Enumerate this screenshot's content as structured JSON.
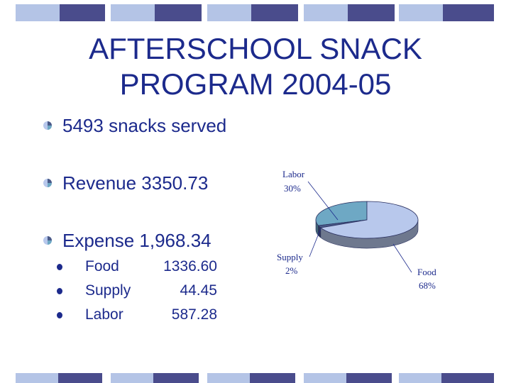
{
  "slide": {
    "title_line1": "AFTERSCHOOL SNACK",
    "title_line2": "PROGRAM 2004-05"
  },
  "bullets": [
    {
      "text": "5493 snacks served"
    },
    {
      "text": "Revenue  3350.73"
    },
    {
      "text": "Expense   1,968.34"
    }
  ],
  "expense_items": [
    {
      "label": "Food",
      "value": "1336.60"
    },
    {
      "label": "Supply",
      "value": "44.45"
    },
    {
      "label": "Labor",
      "value": "587.28"
    }
  ],
  "colors": {
    "text": "#1c2a8c",
    "band_light": "#b4c4e6",
    "band_dark": "#4a4c8c",
    "food": "#b8c8ec",
    "labor": "#6ea8c4",
    "supply": "#4a5a88"
  },
  "chart_data": {
    "type": "pie",
    "three_d": true,
    "title": "",
    "slices": [
      {
        "name": "Labor",
        "percent": 30,
        "label": "30%"
      },
      {
        "name": "Supply",
        "percent": 2,
        "label": "2%"
      },
      {
        "name": "Food",
        "percent": 68,
        "label": "68%"
      }
    ],
    "legend": "none"
  }
}
